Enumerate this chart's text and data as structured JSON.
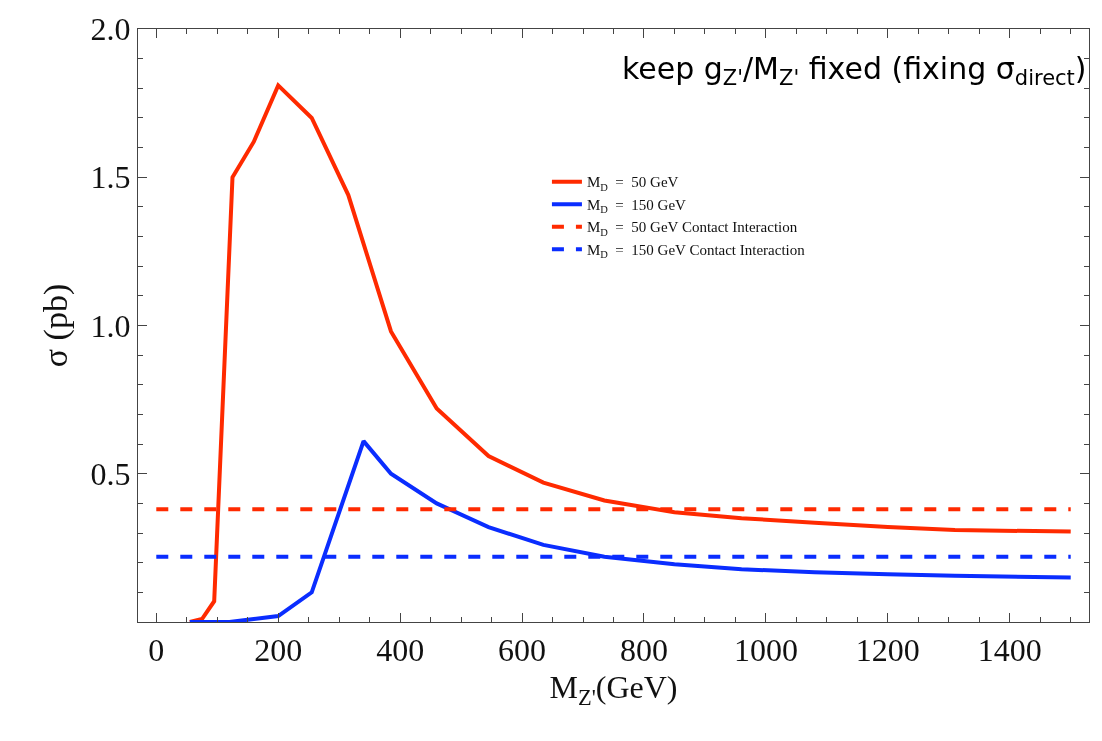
{
  "chart_data": {
    "type": "line",
    "xlabel": "M$_{Z'}$(GeV)",
    "ylabel": "σ (pb)",
    "annotations": [
      "keep g$_{Z'}$/M$_{Z'}$ fixed (fixing σ$_{direct}$)"
    ],
    "xlim": [
      -30,
      1530
    ],
    "xticks": [
      0,
      200,
      400,
      600,
      800,
      1000,
      1200,
      1400
    ],
    "ylim": [
      0,
      2.0
    ],
    "yticks": [
      0.5,
      {
        "value": 1.0,
        "label": "1.0"
      },
      1.5,
      {
        "value": 2.0,
        "label": "2.0"
      }
    ],
    "legend": "top",
    "marker": "none",
    "series": [
      {
        "name": "M$_{D}$  =  50 GeV",
        "color": "#ff2a00",
        "line_style": "solid",
        "x": [
          55,
          75,
          95,
          125,
          160,
          200,
          255,
          315,
          385,
          460,
          545,
          635,
          735,
          850,
          960,
          1080,
          1200,
          1310,
          1500
        ],
        "values": [
          0.0,
          0.01,
          0.07,
          1.5,
          1.62,
          1.81,
          1.7,
          1.44,
          0.98,
          0.72,
          0.56,
          0.47,
          0.41,
          0.37,
          0.35,
          0.335,
          0.32,
          0.31,
          0.305
        ]
      },
      {
        "name": "M$_{D}$  =  150 GeV",
        "color": "#0a2dff",
        "line_style": "solid",
        "x": [
          55,
          120,
          160,
          200,
          255,
          340,
          385,
          460,
          545,
          635,
          735,
          850,
          960,
          1080,
          1200,
          1310,
          1500
        ],
        "values": [
          0.0,
          0.0,
          0.01,
          0.02,
          0.1,
          0.61,
          0.5,
          0.4,
          0.32,
          0.26,
          0.22,
          0.195,
          0.178,
          0.168,
          0.161,
          0.156,
          0.15
        ]
      },
      {
        "name": "M$_{D}$  =  50 GeV Contact Interaction",
        "color": "#ff2a00",
        "line_style": "dashed",
        "x": [
          0,
          1500
        ],
        "values": [
          0.38,
          0.38
        ]
      },
      {
        "name": "M$_{D}$  =  150 GeV Contact Interaction",
        "color": "#0a2dff",
        "line_style": "dashed",
        "x": [
          0,
          1500
        ],
        "values": [
          0.22,
          0.22
        ]
      }
    ]
  }
}
